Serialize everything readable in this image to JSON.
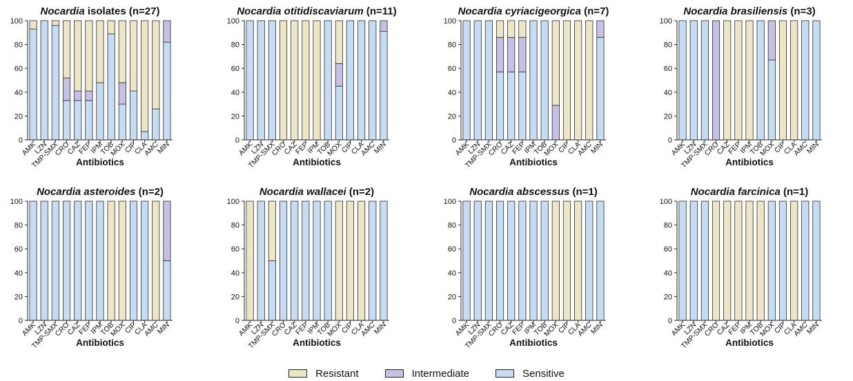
{
  "colors": {
    "Resistant": "#ede6c6",
    "Intermediate": "#c6c0e6",
    "Sensitive": "#c6dcf2",
    "axis": "#222222"
  },
  "legend": [
    {
      "key": "Resistant",
      "label": "Resistant"
    },
    {
      "key": "Intermediate",
      "label": "Intermediate"
    },
    {
      "key": "Sensitive",
      "label": "Sensitive"
    }
  ],
  "chart_data": [
    {
      "type": "bar",
      "stacked": true,
      "title_italic": "Nocardia",
      "title_plain": " isolates (n=27)",
      "xlabel": "Antibiotics",
      "ylabel": "",
      "ylim": [
        0,
        100
      ],
      "yticks": [
        0,
        20,
        40,
        60,
        80,
        100
      ],
      "categories": [
        "AMK",
        "LZN",
        "TMP-SMX",
        "CRO",
        "CAZ",
        "FEP",
        "IPM",
        "TOB",
        "MOX",
        "CIP",
        "CLA",
        "AMC",
        "MIN"
      ],
      "series": [
        {
          "name": "Sensitive",
          "values": [
            93,
            100,
            96,
            33,
            33,
            33,
            48,
            89,
            30,
            41,
            7,
            26,
            82
          ]
        },
        {
          "name": "Intermediate",
          "values": [
            0,
            0,
            0,
            19,
            8,
            8,
            0,
            0,
            18,
            0,
            0,
            0,
            18
          ]
        },
        {
          "name": "Resistant",
          "values": [
            7,
            0,
            4,
            48,
            59,
            59,
            52,
            11,
            52,
            59,
            93,
            74,
            0
          ]
        }
      ]
    },
    {
      "type": "bar",
      "stacked": true,
      "title_italic": "Nocardia otitidiscaviarum",
      "title_plain": " (n=11)",
      "xlabel": "Antibiotics",
      "ylabel": "",
      "ylim": [
        0,
        100
      ],
      "yticks": [
        0,
        20,
        40,
        60,
        80,
        100
      ],
      "categories": [
        "AMK",
        "LZN",
        "TMP-SMX",
        "CRO",
        "CAZ",
        "FEP",
        "IPM",
        "TOB",
        "MOX",
        "CIP",
        "CLA",
        "AMC",
        "MIN"
      ],
      "series": [
        {
          "name": "Sensitive",
          "values": [
            100,
            100,
            100,
            0,
            0,
            0,
            0,
            100,
            45,
            100,
            100,
            100,
            91
          ]
        },
        {
          "name": "Intermediate",
          "values": [
            0,
            0,
            0,
            0,
            0,
            0,
            0,
            0,
            19,
            0,
            0,
            0,
            9
          ]
        },
        {
          "name": "Resistant",
          "values": [
            0,
            0,
            0,
            100,
            100,
            100,
            100,
            0,
            36,
            0,
            0,
            0,
            0
          ]
        }
      ]
    },
    {
      "type": "bar",
      "stacked": true,
      "title_italic": "Nocardia cyriacigeorgica",
      "title_plain": " (n=7)",
      "xlabel": "Antibiotics",
      "ylabel": "",
      "ylim": [
        0,
        100
      ],
      "yticks": [
        0,
        20,
        40,
        60,
        80,
        100
      ],
      "categories": [
        "AMK",
        "LZN",
        "TMP-SMX",
        "CRO",
        "CAZ",
        "FEP",
        "IPM",
        "TOB",
        "MOX",
        "CIP",
        "CLA",
        "AMC",
        "MIN"
      ],
      "series": [
        {
          "name": "Sensitive",
          "values": [
            100,
            100,
            100,
            57,
            57,
            57,
            100,
            100,
            0,
            0,
            0,
            0,
            86
          ]
        },
        {
          "name": "Intermediate",
          "values": [
            0,
            0,
            0,
            29,
            29,
            29,
            0,
            0,
            29,
            0,
            0,
            0,
            14
          ]
        },
        {
          "name": "Resistant",
          "values": [
            0,
            0,
            0,
            14,
            14,
            14,
            0,
            0,
            71,
            100,
            100,
            100,
            0
          ]
        }
      ]
    },
    {
      "type": "bar",
      "stacked": true,
      "title_italic": "Nocardia brasiliensis",
      "title_plain": " (n=3)",
      "xlabel": "Antibiotics",
      "ylabel": "",
      "ylim": [
        0,
        100
      ],
      "yticks": [
        0,
        20,
        40,
        60,
        80,
        100
      ],
      "categories": [
        "AMK",
        "LZN",
        "TMP-SMX",
        "CRO",
        "CAZ",
        "FEP",
        "IPM",
        "TOB",
        "MOX",
        "CIP",
        "CLA",
        "AMC",
        "MIN"
      ],
      "series": [
        {
          "name": "Sensitive",
          "values": [
            100,
            100,
            100,
            0,
            0,
            0,
            0,
            100,
            67,
            0,
            0,
            100,
            100
          ]
        },
        {
          "name": "Intermediate",
          "values": [
            0,
            0,
            0,
            100,
            0,
            0,
            0,
            0,
            33,
            0,
            0,
            0,
            0
          ]
        },
        {
          "name": "Resistant",
          "values": [
            0,
            0,
            0,
            0,
            100,
            100,
            100,
            0,
            0,
            100,
            100,
            0,
            0
          ]
        }
      ]
    },
    {
      "type": "bar",
      "stacked": true,
      "title_italic": "Nocardia asteroides",
      "title_plain": " (n=2)",
      "xlabel": "Antibiotics",
      "ylabel": "",
      "ylim": [
        0,
        100
      ],
      "yticks": [
        0,
        20,
        40,
        60,
        80,
        100
      ],
      "categories": [
        "AMK",
        "LZN",
        "TMP-SMX",
        "CRO",
        "CAZ",
        "FEP",
        "IPM",
        "TOB",
        "MOX",
        "CIP",
        "CLA",
        "AMC",
        "MIN"
      ],
      "series": [
        {
          "name": "Sensitive",
          "values": [
            100,
            100,
            100,
            100,
            100,
            100,
            100,
            0,
            0,
            100,
            100,
            0,
            50
          ]
        },
        {
          "name": "Intermediate",
          "values": [
            0,
            0,
            0,
            0,
            0,
            0,
            0,
            0,
            0,
            0,
            0,
            0,
            50
          ]
        },
        {
          "name": "Resistant",
          "values": [
            0,
            0,
            0,
            0,
            0,
            0,
            0,
            100,
            100,
            0,
            0,
            100,
            0
          ]
        }
      ]
    },
    {
      "type": "bar",
      "stacked": true,
      "title_italic": "Nocardia wallacei",
      "title_plain": " (n=2)",
      "xlabel": "Antibiotics",
      "ylabel": "",
      "ylim": [
        0,
        100
      ],
      "yticks": [
        0,
        20,
        40,
        60,
        80,
        100
      ],
      "categories": [
        "AMK",
        "LZN",
        "TMP-SMX",
        "CRO",
        "CAZ",
        "FEP",
        "IPM",
        "TOB",
        "MOX",
        "CIP",
        "CLA",
        "AMC",
        "MIN"
      ],
      "series": [
        {
          "name": "Sensitive",
          "values": [
            0,
            100,
            50,
            100,
            100,
            100,
            100,
            100,
            0,
            0,
            0,
            100,
            100
          ]
        },
        {
          "name": "Intermediate",
          "values": [
            0,
            0,
            0,
            0,
            0,
            0,
            0,
            0,
            0,
            0,
            0,
            0,
            0
          ]
        },
        {
          "name": "Resistant",
          "values": [
            100,
            0,
            50,
            0,
            0,
            0,
            0,
            0,
            100,
            100,
            100,
            0,
            0
          ]
        }
      ]
    },
    {
      "type": "bar",
      "stacked": true,
      "title_italic": "Nocardia abscessus",
      "title_plain": " (n=1)",
      "xlabel": "Antibiotics",
      "ylabel": "",
      "ylim": [
        0,
        100
      ],
      "yticks": [
        0,
        20,
        40,
        60,
        80,
        100
      ],
      "categories": [
        "AMK",
        "LZN",
        "TMP-SMX",
        "CRO",
        "CAZ",
        "FEP",
        "IPM",
        "TOB",
        "MOX",
        "CIP",
        "CLA",
        "AMC",
        "MIN"
      ],
      "series": [
        {
          "name": "Sensitive",
          "values": [
            100,
            100,
            100,
            100,
            100,
            100,
            100,
            100,
            0,
            0,
            0,
            100,
            100
          ]
        },
        {
          "name": "Intermediate",
          "values": [
            0,
            0,
            0,
            0,
            0,
            0,
            0,
            0,
            0,
            0,
            0,
            0,
            0
          ]
        },
        {
          "name": "Resistant",
          "values": [
            0,
            0,
            0,
            0,
            0,
            0,
            0,
            0,
            100,
            100,
            100,
            0,
            0
          ]
        }
      ]
    },
    {
      "type": "bar",
      "stacked": true,
      "title_italic": "Nocardia farcinica",
      "title_plain": " (n=1)",
      "xlabel": "Antibiotics",
      "ylabel": "",
      "ylim": [
        0,
        100
      ],
      "yticks": [
        0,
        20,
        40,
        60,
        80,
        100
      ],
      "categories": [
        "AMK",
        "LZN",
        "TMP-SMX",
        "CRO",
        "CAZ",
        "FEP",
        "IPM",
        "TOB",
        "MOX",
        "CIP",
        "CLA",
        "AMC",
        "MIN"
      ],
      "series": [
        {
          "name": "Sensitive",
          "values": [
            100,
            100,
            100,
            0,
            0,
            0,
            0,
            0,
            100,
            100,
            0,
            100,
            100
          ]
        },
        {
          "name": "Intermediate",
          "values": [
            0,
            0,
            0,
            0,
            0,
            0,
            0,
            0,
            0,
            0,
            0,
            0,
            0
          ]
        },
        {
          "name": "Resistant",
          "values": [
            0,
            0,
            0,
            100,
            100,
            100,
            100,
            100,
            0,
            0,
            100,
            0,
            0
          ]
        }
      ]
    }
  ]
}
